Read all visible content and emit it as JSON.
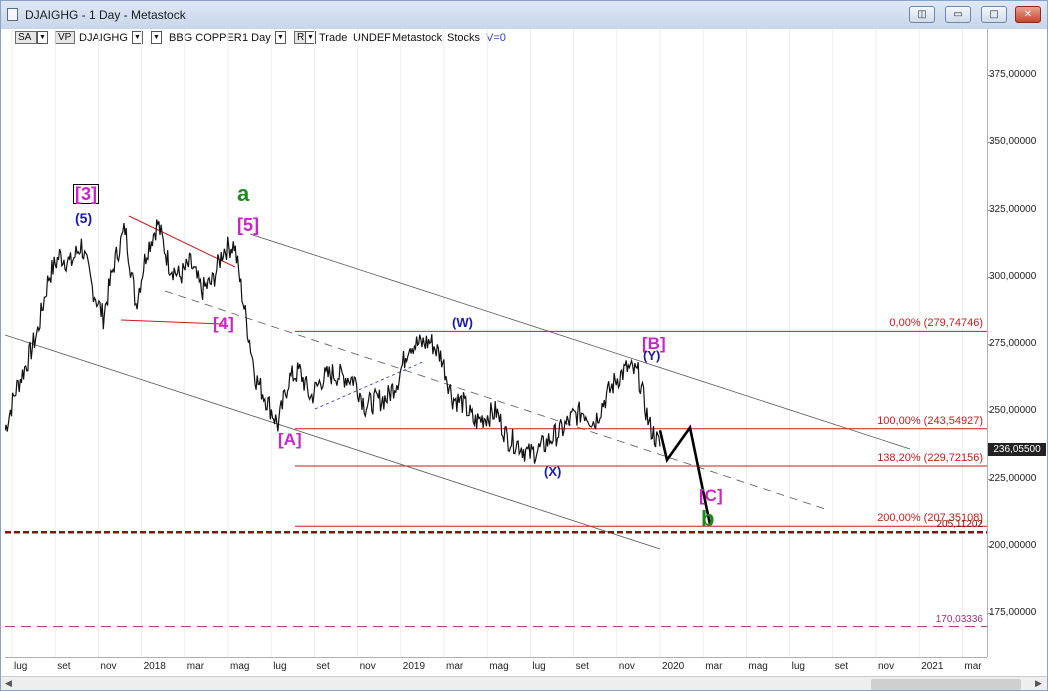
{
  "window": {
    "title": "DJAIGHG - 1 Day - Metastock",
    "buttons": {
      "restore": "◫",
      "minimize": "▭",
      "maximize": "□",
      "close": "✕"
    }
  },
  "toolbar": {
    "sa": "SA",
    "vp": "VP",
    "symbol": "DJAIGHG",
    "name": "BBG COPPER",
    "period": "1 Day",
    "r": "R",
    "trade": "Trade",
    "undef": "UNDEF",
    "source": "Metastock",
    "stocks": "Stocks",
    "v": "V=0"
  },
  "chart_data": {
    "type": "line",
    "title": "",
    "xlabel": "",
    "ylabel": "",
    "ylim": [
      160,
      390
    ],
    "x_axis": [
      "lug",
      "set",
      "nov",
      "2018",
      "mar",
      "mag",
      "lug",
      "set",
      "nov",
      "2019",
      "mar",
      "mag",
      "lug",
      "set",
      "nov",
      "2020",
      "mar",
      "mag",
      "lug",
      "set",
      "nov",
      "2021",
      "mar"
    ],
    "y_ticks": [
      "375,00000",
      "350,00000",
      "325,00000",
      "300,00000",
      "275,00000",
      "250,00000",
      "225,00000",
      "200,00000",
      "175,00000"
    ],
    "last_price": "236,05500",
    "series": [
      {
        "values": [
          243,
          258,
          268,
          280,
          300,
          308,
          305,
          312,
          296,
          285,
          305,
          318,
          290,
          310,
          320,
          305,
          300,
          305,
          295,
          298,
          310,
          312,
          286,
          262,
          254,
          245,
          262,
          265,
          255,
          262,
          264,
          263,
          262,
          252,
          254,
          255,
          262,
          275,
          275,
          276,
          270,
          255,
          253,
          246,
          248,
          250,
          240,
          238,
          234,
          236,
          240,
          243,
          248,
          250,
          246,
          255,
          262,
          266,
          264,
          245,
          237
        ]
      }
    ],
    "fib_levels": [
      {
        "label": "0,00% (279,74746)",
        "value": 279.74746
      },
      {
        "label": "100,00% (243,54927)",
        "value": 243.54927
      },
      {
        "label": "138,20% (229,72156)",
        "value": 229.72156
      },
      {
        "label": "200,00% (207,35108)",
        "value": 207.35108
      }
    ],
    "horizontal_lines": [
      {
        "label": "205,11202",
        "value": 205.11202
      },
      {
        "label": "170,03336",
        "value": 170.03336
      }
    ],
    "wave_labels": [
      {
        "text": "[3]",
        "color": "#cc22cc"
      },
      {
        "text": "(5)",
        "color": "#1a1aaa"
      },
      {
        "text": "a",
        "color": "#1a8a1a"
      },
      {
        "text": "[5]",
        "color": "#cc22cc"
      },
      {
        "text": "[4]",
        "color": "#cc22cc"
      },
      {
        "text": "(W)",
        "color": "#1a1aaa"
      },
      {
        "text": "[B]",
        "color": "#cc22cc"
      },
      {
        "text": "(Y)",
        "color": "#1a1aaa"
      },
      {
        "text": "[A]",
        "color": "#cc22cc"
      },
      {
        "text": "(X)",
        "color": "#1a1aaa"
      },
      {
        "text": "[C]",
        "color": "#cc22cc"
      },
      {
        "text": "b",
        "color": "#1a8a1a"
      }
    ],
    "projection": [
      243,
      232,
      244,
      208
    ]
  }
}
